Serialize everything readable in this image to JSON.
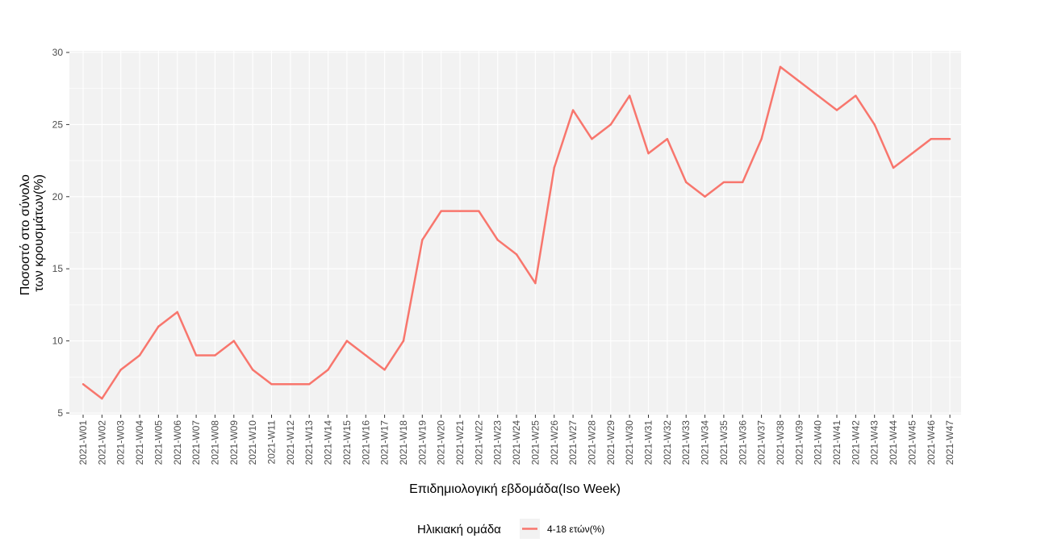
{
  "chart_data": {
    "type": "line",
    "title": "",
    "xlabel": "Επιδημιολογική εβδομάδα(Iso Week)",
    "ylabel_lines": [
      "Ποσοστό στο σύνολο",
      "των κρουσμάτων(%)"
    ],
    "ylim": [
      5,
      30
    ],
    "yticks": [
      5,
      10,
      15,
      20,
      25,
      30
    ],
    "grid": true,
    "legend_position": "bottom",
    "legend_title": "Ηλικιακή ομάδα",
    "categories": [
      "2021-W01",
      "2021-W02",
      "2021-W03",
      "2021-W04",
      "2021-W05",
      "2021-W06",
      "2021-W07",
      "2021-W08",
      "2021-W09",
      "2021-W10",
      "2021-W11",
      "2021-W12",
      "2021-W13",
      "2021-W14",
      "2021-W15",
      "2021-W16",
      "2021-W17",
      "2021-W18",
      "2021-W19",
      "2021-W20",
      "2021-W21",
      "2021-W22",
      "2021-W23",
      "2021-W24",
      "2021-W25",
      "2021-W26",
      "2021-W27",
      "2021-W28",
      "2021-W29",
      "2021-W30",
      "2021-W31",
      "2021-W32",
      "2021-W33",
      "2021-W34",
      "2021-W35",
      "2021-W36",
      "2021-W37",
      "2021-W38",
      "2021-W39",
      "2021-W40",
      "2021-W41",
      "2021-W42",
      "2021-W43",
      "2021-W44",
      "2021-W45",
      "2021-W46",
      "2021-W47"
    ],
    "series": [
      {
        "name": "4-18 ετών(%)",
        "color": "#f8766d",
        "values": [
          7,
          6,
          8,
          9,
          11,
          12,
          9,
          9,
          10,
          8,
          7,
          7,
          7,
          8,
          10,
          9,
          8,
          10,
          17,
          19,
          19,
          19,
          17,
          16,
          14,
          22,
          26,
          24,
          25,
          27,
          23,
          24,
          21,
          20,
          21,
          21,
          24,
          29,
          28,
          27,
          26,
          27,
          25,
          22,
          23,
          24,
          24
        ]
      }
    ]
  },
  "colors": {
    "panel_background": "#f2f2f2",
    "grid_major": "#ffffff",
    "tick_text": "#4d4d4d"
  }
}
